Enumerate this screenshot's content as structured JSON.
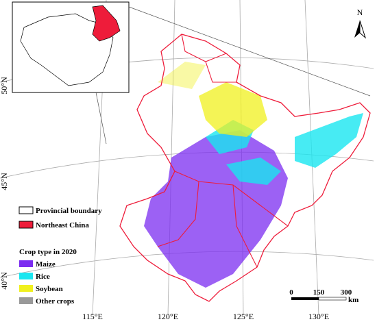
{
  "north": "N",
  "lat_labels": [
    "50°N",
    "45°N",
    "40°N"
  ],
  "lon_labels": [
    "115°E",
    "120°E",
    "125°E",
    "130°E"
  ],
  "legend": {
    "boundary": "Provincial boundary",
    "region": {
      "label": "Northeast China",
      "color": "#ee1c3a"
    },
    "title": "Crop type in 2020",
    "items": [
      {
        "label": "Maize",
        "color": "#7b2cf0"
      },
      {
        "label": "Rice",
        "color": "#19e6f0"
      },
      {
        "label": "Soybean",
        "color": "#f0f01e"
      },
      {
        "label": "Other crops",
        "color": "#999999"
      }
    ]
  },
  "scale_bar": {
    "ticks": [
      "0",
      "150",
      "300"
    ],
    "unit": "km"
  }
}
